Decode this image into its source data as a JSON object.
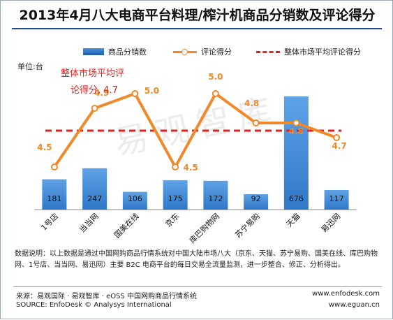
{
  "title": "2013年4月八大电商平台料理/榨汁机商品分销数及评论得分",
  "unit_label": "单位:台",
  "avg_annotation": [
    "整体市场平均评",
    "论得分, 4.7"
  ],
  "watermark": "易观智库",
  "note": "数据说明：以上数据是通过中国网购商品行情系统对中国大陆市场八大（京东、天猫、苏宁易购、国美在线、库巴购物网、1号店、当当网、易迅网）主要 B2C 电商平台的每日交易全流量监测，进一步整合、修正、分析得出。",
  "source_line1": "来源：易观国际 · 易观智库 · eOSS 中国网购商品行情系统",
  "source_line2": "SOURCE: EnfoDesk © Analysys International",
  "url1": "www.enfodesk.com",
  "url2": "www.eguan.cn",
  "colors": {
    "bar": "#2f78c8",
    "line": "#f0892a",
    "avg": "#dd2222",
    "label_line": "#f0892a"
  },
  "chart_data": {
    "type": "bar+line",
    "title": "2013年4月八大电商平台料理/榨汁机商品分销数及评论得分",
    "ylabel": "单位:台",
    "categories": [
      "1号店",
      "当当网",
      "国美在线",
      "京东",
      "库巴购物网",
      "苏宁易购",
      "天猫",
      "易迅网"
    ],
    "series": [
      {
        "name": "商品分销数",
        "type": "bar",
        "values": [
          181,
          247,
          106,
          175,
          172,
          92,
          676,
          117
        ]
      },
      {
        "name": "评论得分",
        "type": "line",
        "values": [
          4.5,
          4.9,
          5.0,
          4.5,
          5.0,
          4.8,
          4.8,
          4.7
        ]
      },
      {
        "name": "整体市场平均评论得分",
        "type": "reference",
        "value": 4.7
      }
    ],
    "legend": "top",
    "grid": false
  }
}
